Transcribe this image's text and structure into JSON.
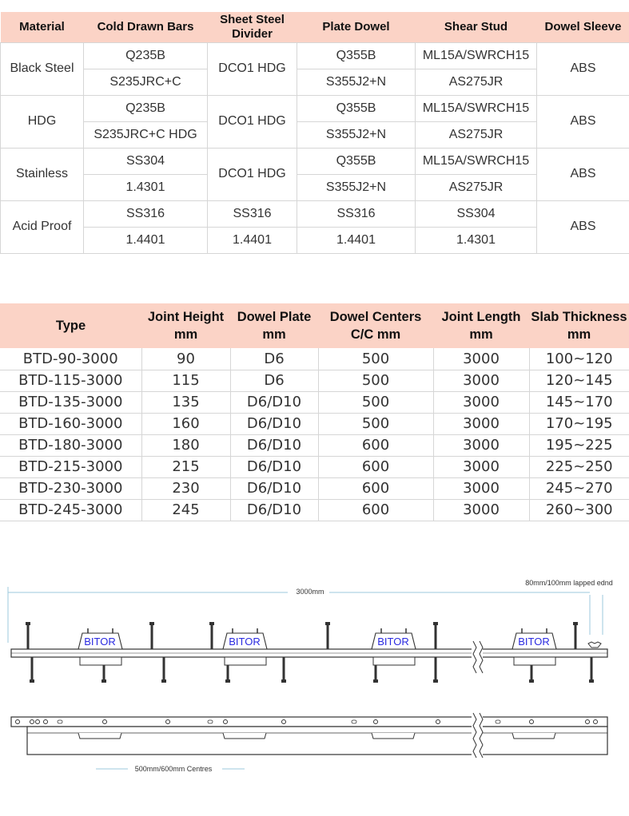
{
  "materials_table": {
    "headers": [
      "Material",
      "Cold Drawn Bars",
      "Sheet Steel Divider",
      "Plate Dowel",
      "Shear Stud",
      "Dowel Sleeve"
    ],
    "groups": [
      {
        "material": "Black Steel",
        "bars": [
          "Q235B",
          "S235JRC+C"
        ],
        "divider": [
          "DCO1 HDG"
        ],
        "plate_dowel": [
          "Q355B",
          "S355J2+N"
        ],
        "shear_stud": [
          "ML15A/SWRCH15",
          "AS275JR"
        ],
        "sleeve": "ABS"
      },
      {
        "material": "HDG",
        "bars": [
          "Q235B",
          "S235JRC+C HDG"
        ],
        "divider": [
          "DCO1 HDG"
        ],
        "plate_dowel": [
          "Q355B",
          "S355J2+N"
        ],
        "shear_stud": [
          "ML15A/SWRCH15",
          "AS275JR"
        ],
        "sleeve": "ABS"
      },
      {
        "material": "Stainless",
        "bars": [
          "SS304",
          "1.4301"
        ],
        "divider": [
          "DCO1 HDG"
        ],
        "plate_dowel": [
          "Q355B",
          "S355J2+N"
        ],
        "shear_stud": [
          "ML15A/SWRCH15",
          "AS275JR"
        ],
        "sleeve": "ABS"
      },
      {
        "material": "Acid Proof",
        "bars": [
          "SS316",
          "1.4401"
        ],
        "divider": [
          "SS316",
          "1.4401"
        ],
        "plate_dowel": [
          "SS316",
          "1.4401"
        ],
        "shear_stud": [
          "SS304",
          "1.4301"
        ],
        "sleeve": "ABS"
      }
    ]
  },
  "types_table": {
    "headers": [
      {
        "line1": "Type",
        "line2": ""
      },
      {
        "line1": "Joint Height",
        "line2": "mm"
      },
      {
        "line1": "Dowel Plate",
        "line2": "mm"
      },
      {
        "line1": "Dowel Centers",
        "line2": "C/C mm"
      },
      {
        "line1": "Joint Length",
        "line2": "mm"
      },
      {
        "line1": "Slab Thickness",
        "line2": "mm"
      }
    ],
    "rows": [
      [
        "BTD-90-3000",
        "90",
        "D6",
        "500",
        "3000",
        "100~120"
      ],
      [
        "BTD-115-3000",
        "115",
        "D6",
        "500",
        "3000",
        "120~145"
      ],
      [
        "BTD-135-3000",
        "135",
        "D6/D10",
        "500",
        "3000",
        "145~170"
      ],
      [
        "BTD-160-3000",
        "160",
        "D6/D10",
        "500",
        "3000",
        "170~195"
      ],
      [
        "BTD-180-3000",
        "180",
        "D6/D10",
        "600",
        "3000",
        "195~225"
      ],
      [
        "BTD-215-3000",
        "215",
        "D6/D10",
        "600",
        "3000",
        "225~250"
      ],
      [
        "BTD-230-3000",
        "230",
        "D6/D10",
        "600",
        "3000",
        "245~270"
      ],
      [
        "BTD-245-3000",
        "245",
        "D6/D10",
        "600",
        "3000",
        "260~300"
      ]
    ]
  },
  "drawing": {
    "length_label": "3000mm",
    "lap_label": "80mm/100mm lapped ednd",
    "centres_label": "500mm/600mm Centres",
    "brand_label": "BITOR",
    "line_color": "#333333",
    "dim_color": "#9ec9de",
    "brand_color": "#2a2ae0"
  }
}
